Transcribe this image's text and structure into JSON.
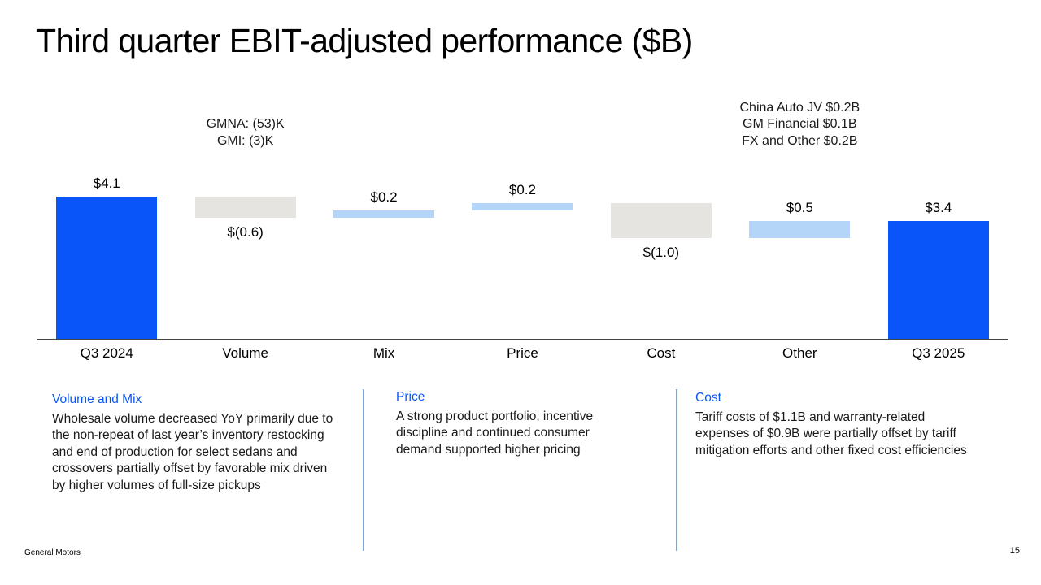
{
  "slide": {
    "title": "Third quarter EBIT-adjusted performance ($B)",
    "footer_left": "General Motors",
    "page_number": "15"
  },
  "colors": {
    "total_bar_blue": "#0a55fa",
    "increase_bar_light_blue": "#b4d4f8",
    "decrease_bar_gray": "#e5e4e0",
    "heading_blue": "#0a55fa",
    "divider_blue": "#7ba4d9",
    "axis_gray": "#454545"
  },
  "chart_data": {
    "type": "bar",
    "subtype": "waterfall",
    "unit": "$B",
    "title": "Third quarter EBIT-adjusted performance ($B)",
    "xlabel": "",
    "ylabel": "",
    "ylim": [
      0,
      7
    ],
    "grid": false,
    "legend": false,
    "categories": [
      "Q3 2024",
      "Volume",
      "Mix",
      "Price",
      "Cost",
      "Other",
      "Q3 2025"
    ],
    "bars": [
      {
        "label": "Q3 2024",
        "kind": "total",
        "value": 4.1,
        "display": "$4.1"
      },
      {
        "label": "Volume",
        "kind": "delta",
        "value": -0.6,
        "display": "$(0.6)",
        "annotation": [
          "GMNA: (53)K",
          "GMI: (3)K"
        ]
      },
      {
        "label": "Mix",
        "kind": "delta",
        "value": 0.2,
        "display": "$0.2"
      },
      {
        "label": "Price",
        "kind": "delta",
        "value": 0.2,
        "display": "$0.2"
      },
      {
        "label": "Cost",
        "kind": "delta",
        "value": -1.0,
        "display": "$(1.0)"
      },
      {
        "label": "Other",
        "kind": "delta",
        "value": 0.5,
        "display": "$0.5",
        "annotation": [
          "China Auto JV $0.2B",
          "GM Financial $0.1B",
          "FX and Other $0.2B"
        ]
      },
      {
        "label": "Q3 2025",
        "kind": "total",
        "value": 3.4,
        "display": "$3.4"
      }
    ]
  },
  "callouts": [
    {
      "heading": "Volume and Mix",
      "body": "Wholesale volume decreased YoY primarily due to the non-repeat of last year’s inventory restocking and end of production for select sedans and crossovers partially offset by favorable mix driven by higher volumes of full-size pickups"
    },
    {
      "heading": "Price",
      "body": "A strong product portfolio, incentive discipline and continued consumer demand supported higher pricing"
    },
    {
      "heading": "Cost",
      "body": "Tariff costs of $1.1B and warranty-related expenses of $0.9B were partially offset by tariff mitigation efforts and other fixed cost efficiencies"
    }
  ]
}
